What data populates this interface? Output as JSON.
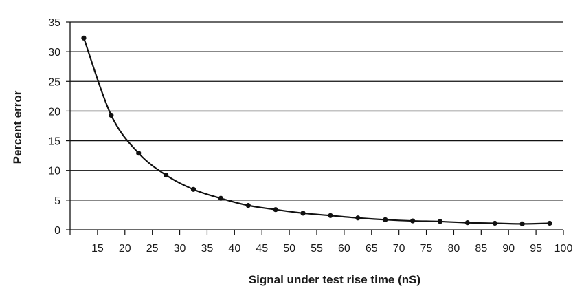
{
  "chart_data": {
    "type": "line",
    "xlabel": "Signal under test rise time (nS)",
    "ylabel": "Percent error",
    "xlim": [
      10,
      100
    ],
    "ylim": [
      0,
      35
    ],
    "x_ticks": [
      15,
      20,
      25,
      30,
      35,
      40,
      45,
      50,
      55,
      60,
      65,
      70,
      75,
      80,
      85,
      90,
      95,
      100
    ],
    "y_ticks": [
      0,
      5,
      10,
      15,
      20,
      25,
      30,
      35
    ],
    "grid": "horizontal",
    "series": [
      {
        "x": [
          12.5,
          17.5,
          22.5,
          27.5,
          32.5,
          37.5,
          42.5,
          47.5,
          52.5,
          57.5,
          62.5,
          67.5,
          72.5,
          77.5,
          82.5,
          87.5,
          92.5,
          97.5
        ],
        "y": [
          32.3,
          19.3,
          12.9,
          9.2,
          6.8,
          5.3,
          4.1,
          3.4,
          2.8,
          2.4,
          2.0,
          1.7,
          1.5,
          1.4,
          1.2,
          1.1,
          1.0,
          1.1
        ]
      }
    ],
    "colors": {
      "line": "#111111",
      "grid": "#111111",
      "background": "#ffffff"
    }
  }
}
